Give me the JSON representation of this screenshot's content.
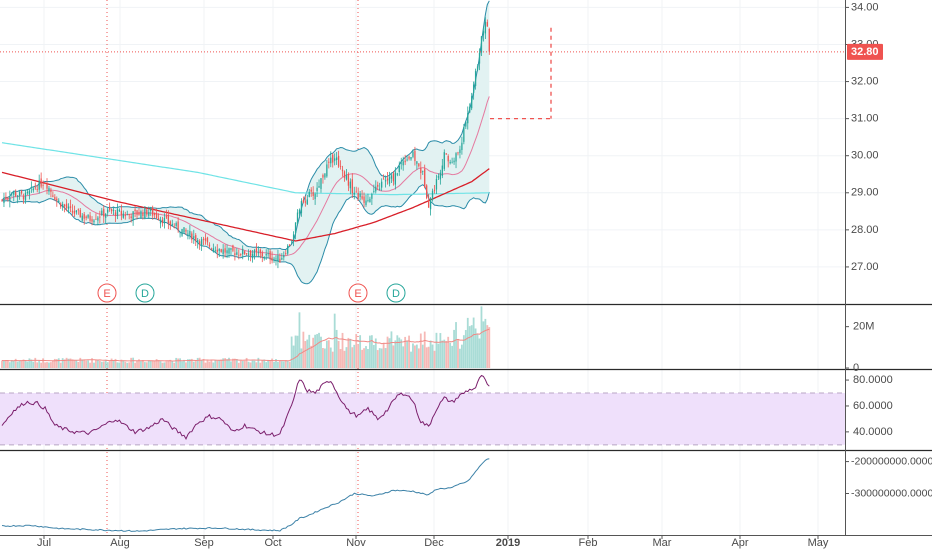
{
  "colors": {
    "up": "#26a69a",
    "down": "#ef5350",
    "bb": "#2b8ca8",
    "bb_fill": "#e2f2f2",
    "bb_basis": "#e57aa0",
    "ma_red": "#d81e28",
    "ma_cyan": "#6fe3e6",
    "rsi": "#7b1f6c",
    "rsi_band": "#efe0fb",
    "obv": "#3d82a8",
    "volume_ma": "#f08a86",
    "price_label_bg": "#ef5350",
    "grid": "#f0f3f6",
    "axis_text": "#4a4a4a"
  },
  "price_label": "32.80",
  "events": [
    {
      "type": "E",
      "date": "Jul 26",
      "color": "#ef5350"
    },
    {
      "type": "D",
      "date": "Aug 7",
      "color": "#26a69a"
    },
    {
      "type": "E",
      "date": "Oct 30",
      "color": "#ef5350"
    },
    {
      "type": "D",
      "date": "Nov 12",
      "color": "#26a69a"
    }
  ],
  "chart_data": [
    {
      "type": "candlestick",
      "name": "price",
      "y_ticks": [
        "34.00",
        "33.00",
        "32.00",
        "31.00",
        "30.00",
        "29.00",
        "28.00",
        "27.00"
      ],
      "ylim": [
        26.0,
        34.2
      ],
      "x_ticks": [
        "Jul",
        "Aug",
        "Sep",
        "Oct",
        "Nov",
        "Dec",
        "2019",
        "Feb",
        "Mar",
        "Apr",
        "May"
      ],
      "last_close": 32.8,
      "price_targets": [
        33.45,
        31.0
      ],
      "anchors": {
        "close": [
          [
            0,
            28.8
          ],
          [
            5,
            29.0
          ],
          [
            12,
            28.9
          ],
          [
            18,
            29.2
          ],
          [
            22,
            29.3
          ],
          [
            28,
            28.8
          ],
          [
            35,
            28.5
          ],
          [
            45,
            28.3
          ],
          [
            55,
            28.5
          ],
          [
            65,
            28.4
          ],
          [
            75,
            28.5
          ],
          [
            85,
            28.2
          ],
          [
            95,
            27.9
          ],
          [
            105,
            27.6
          ],
          [
            115,
            27.4
          ],
          [
            125,
            27.4
          ],
          [
            135,
            27.3
          ],
          [
            142,
            27.2
          ],
          [
            148,
            27.7
          ],
          [
            152,
            28.6
          ],
          [
            156,
            28.9
          ],
          [
            160,
            29.0
          ],
          [
            165,
            29.6
          ],
          [
            170,
            30.0
          ],
          [
            175,
            29.5
          ],
          [
            180,
            29.0
          ],
          [
            185,
            28.8
          ],
          [
            190,
            29.0
          ],
          [
            195,
            29.3
          ],
          [
            200,
            29.4
          ],
          [
            205,
            29.9
          ],
          [
            210,
            30.0
          ],
          [
            215,
            29.5
          ],
          [
            218,
            28.7
          ],
          [
            222,
            29.3
          ],
          [
            226,
            30.0
          ],
          [
            230,
            29.8
          ],
          [
            234,
            30.2
          ],
          [
            237,
            30.9
          ],
          [
            240,
            31.6
          ],
          [
            243,
            32.5
          ],
          [
            245,
            33.2
          ],
          [
            247,
            33.7
          ],
          [
            248,
            33.5
          ],
          [
            249,
            32.8
          ]
        ],
        "ma_red": [
          [
            0,
            29.55
          ],
          [
            30,
            29.15
          ],
          [
            60,
            28.75
          ],
          [
            90,
            28.4
          ],
          [
            120,
            28.05
          ],
          [
            150,
            27.7
          ],
          [
            170,
            27.9
          ],
          [
            190,
            28.2
          ],
          [
            210,
            28.6
          ],
          [
            225,
            28.95
          ],
          [
            240,
            29.3
          ],
          [
            249,
            29.65
          ]
        ],
        "ma_cyan": [
          [
            0,
            30.35
          ],
          [
            50,
            29.95
          ],
          [
            100,
            29.55
          ],
          [
            150,
            29.0
          ],
          [
            200,
            28.95
          ],
          [
            249,
            29.0
          ]
        ],
        "rsi": [
          [
            0,
            45
          ],
          [
            5,
            55
          ],
          [
            12,
            63
          ],
          [
            18,
            62
          ],
          [
            22,
            58
          ],
          [
            27,
            45
          ],
          [
            32,
            42
          ],
          [
            37,
            40
          ],
          [
            45,
            39
          ],
          [
            52,
            45
          ],
          [
            58,
            50
          ],
          [
            63,
            45
          ],
          [
            68,
            40
          ],
          [
            75,
            43
          ],
          [
            82,
            50
          ],
          [
            88,
            42
          ],
          [
            94,
            36
          ],
          [
            100,
            47
          ],
          [
            106,
            52
          ],
          [
            112,
            50
          ],
          [
            118,
            40
          ],
          [
            124,
            45
          ],
          [
            130,
            41
          ],
          [
            136,
            38
          ],
          [
            142,
            38
          ],
          [
            148,
            60
          ],
          [
            152,
            81
          ],
          [
            156,
            72
          ],
          [
            160,
            70
          ],
          [
            164,
            76
          ],
          [
            168,
            80
          ],
          [
            172,
            68
          ],
          [
            177,
            56
          ],
          [
            182,
            52
          ],
          [
            187,
            58
          ],
          [
            192,
            50
          ],
          [
            197,
            57
          ],
          [
            202,
            68
          ],
          [
            206,
            70
          ],
          [
            210,
            64
          ],
          [
            214,
            48
          ],
          [
            218,
            44
          ],
          [
            222,
            58
          ],
          [
            226,
            66
          ],
          [
            230,
            63
          ],
          [
            234,
            68
          ],
          [
            238,
            72
          ],
          [
            242,
            74
          ],
          [
            245,
            84
          ],
          [
            249,
            74
          ]
        ],
        "obv": [
          [
            0,
            -402000000.0
          ],
          [
            15,
            -400000000.0
          ],
          [
            30,
            -410000000.0
          ],
          [
            50,
            -414000000.0
          ],
          [
            70,
            -418000000.0
          ],
          [
            90,
            -410000000.0
          ],
          [
            110,
            -408000000.0
          ],
          [
            130,
            -414000000.0
          ],
          [
            142,
            -416000000.0
          ],
          [
            148,
            -397000000.0
          ],
          [
            152,
            -378000000.0
          ],
          [
            156,
            -370000000.0
          ],
          [
            165,
            -345000000.0
          ],
          [
            172,
            -328000000.0
          ],
          [
            180,
            -300000000.0
          ],
          [
            190,
            -308000000.0
          ],
          [
            200,
            -290000000.0
          ],
          [
            210,
            -293000000.0
          ],
          [
            218,
            -305000000.0
          ],
          [
            222,
            -286000000.0
          ],
          [
            230,
            -282000000.0
          ],
          [
            234,
            -270000000.0
          ],
          [
            238,
            -262000000.0
          ],
          [
            242,
            -232000000.0
          ],
          [
            245,
            -208000000.0
          ],
          [
            248,
            -192000000.0
          ],
          [
            249,
            -190000000.0
          ]
        ]
      }
    },
    {
      "type": "bar",
      "name": "volume",
      "y_ticks": [
        "20M",
        "0"
      ],
      "ylim": [
        0,
        30000000
      ]
    },
    {
      "type": "line",
      "name": "rsi",
      "y_ticks": [
        "80.0000",
        "60.0000",
        "40.0000"
      ],
      "ylim": [
        26,
        87
      ],
      "bands": [
        70,
        30
      ]
    },
    {
      "type": "line",
      "name": "obv",
      "y_ticks": [
        "-200000000.0000",
        "-300000000.0000"
      ],
      "ylim": [
        -430000000,
        -170000000
      ]
    }
  ]
}
